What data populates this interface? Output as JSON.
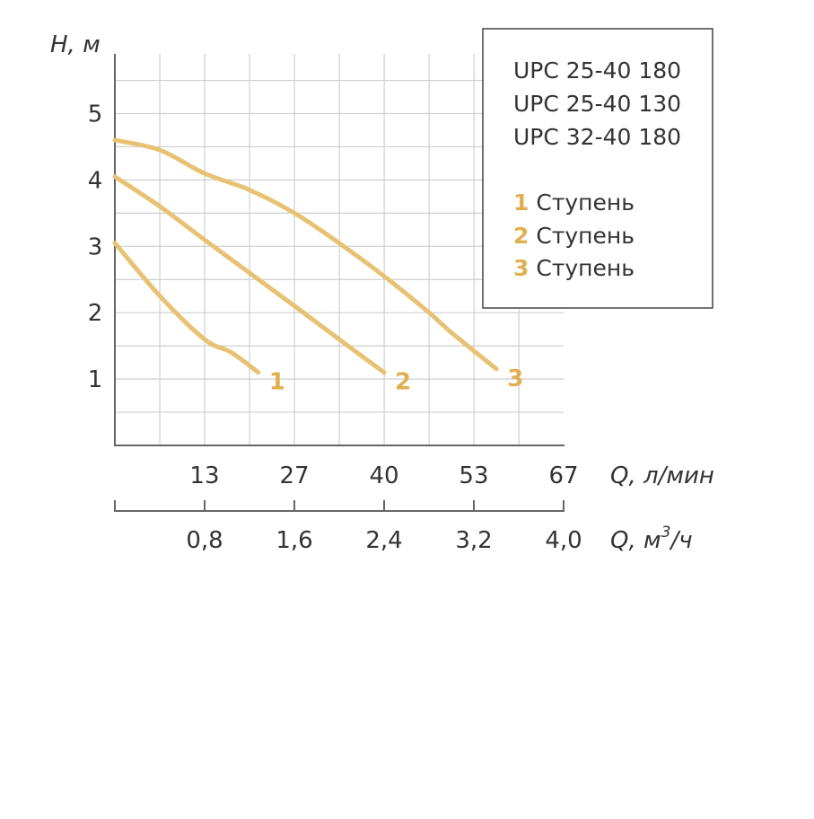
{
  "chart_data": {
    "type": "line",
    "y_axis": {
      "label": "H, м",
      "ticks": [
        1,
        2,
        3,
        4,
        5
      ],
      "range": [
        0,
        5.9
      ],
      "minor_step": 0.5
    },
    "x_axis_primary": {
      "label": "Q, л/мин",
      "ticks": [
        "13",
        "27",
        "40",
        "53",
        "67"
      ],
      "tick_values": [
        13.33,
        26.67,
        40,
        53.33,
        66.67
      ],
      "range": [
        0,
        66.67
      ],
      "minor_step": 6.67
    },
    "x_axis_secondary": {
      "label": "Q, м³/ч",
      "label_main": "Q, м",
      "label_sup": "3",
      "label_tail": "/ч",
      "ticks": [
        "0,8",
        "1,6",
        "2,4",
        "3,2",
        "4,0"
      ],
      "tick_values": [
        0.8,
        1.6,
        2.4,
        3.2,
        4.0
      ]
    },
    "grid": true,
    "curve_color": "#e8c274",
    "curve_label_color": "#e0b050",
    "series": [
      {
        "name": "1",
        "x": [
          0,
          6.7,
          13.3,
          17.3,
          21.3
        ],
        "y": [
          3.05,
          2.25,
          1.6,
          1.4,
          1.1
        ]
      },
      {
        "name": "2",
        "x": [
          0,
          6.7,
          13.3,
          20,
          26.7,
          33.3,
          40
        ],
        "y": [
          4.05,
          3.6,
          3.1,
          2.6,
          2.1,
          1.6,
          1.1
        ]
      },
      {
        "name": "3",
        "x": [
          0,
          6.7,
          13.3,
          20,
          26.7,
          33.3,
          40,
          46.7,
          50,
          56.7
        ],
        "y": [
          4.6,
          4.45,
          4.1,
          3.85,
          3.5,
          3.05,
          2.55,
          2.0,
          1.7,
          1.15
        ]
      }
    ]
  },
  "legend": {
    "models": [
      "UPC 25-40 180",
      "UPC 25-40 130",
      "UPC 32-40 180"
    ],
    "stages": [
      {
        "num": "1",
        "label": "Ступень"
      },
      {
        "num": "2",
        "label": "Ступень"
      },
      {
        "num": "3",
        "label": "Ступень"
      }
    ]
  }
}
